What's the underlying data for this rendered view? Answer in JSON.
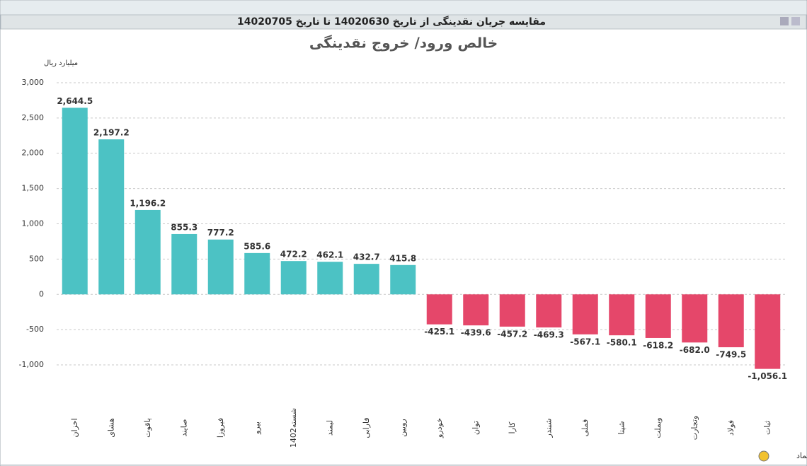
{
  "chart_data": {
    "type": "bar",
    "header": "مقایسه جریان نقدینگی از تاریخ 14020630 تا تاریخ 14020705",
    "title": "خالص ورود/ خروج نقدینگی",
    "y_label": "میلیارد ریال",
    "x_label": "نماد",
    "categories": [
      "اخزان",
      "هشای",
      "یاقوت",
      "صایند",
      "فیروزا",
      "بیرو",
      "شسته1402",
      "لیمند",
      "فارابی",
      "رویین",
      "خودرو",
      "توان",
      "کارا",
      "شبندر",
      "فملی",
      "شپنا",
      "وبملت",
      "وتجارت",
      "فولاد",
      "ثبات"
    ],
    "values": [
      2644.5,
      2197.2,
      1196.2,
      855.3,
      777.2,
      585.6,
      472.2,
      462.1,
      432.7,
      415.8,
      -425.1,
      -439.6,
      -457.2,
      -469.3,
      -567.1,
      -580.1,
      -618.2,
      -682.0,
      -749.5,
      -1056.1
    ],
    "value_labels": [
      "2,644.5",
      "2,197.2",
      "1,196.2",
      "855.3",
      "777.2",
      "585.6",
      "472.2",
      "462.1",
      "432.7",
      "415.8",
      "-425.1",
      "-439.6",
      "-457.2",
      "-469.3",
      "-567.1",
      "-580.1",
      "-618.2",
      "-682.0",
      "-749.5",
      "-1,056.1"
    ],
    "color_positive": "#4cc2c4",
    "color_negative": "#e5476a",
    "ylim": [
      -1250,
      3170
    ],
    "yticks": [
      {
        "value": -1000,
        "label": "-1,000"
      },
      -500,
      0,
      500,
      {
        "value": 1000,
        "label": "1,000"
      },
      {
        "value": 1500,
        "label": "1,500"
      },
      {
        "value": 2000,
        "label": "2,000"
      },
      {
        "value": 2500,
        "label": "2,500"
      },
      {
        "value": 3000,
        "label": "3,000"
      }
    ],
    "grid": true
  }
}
